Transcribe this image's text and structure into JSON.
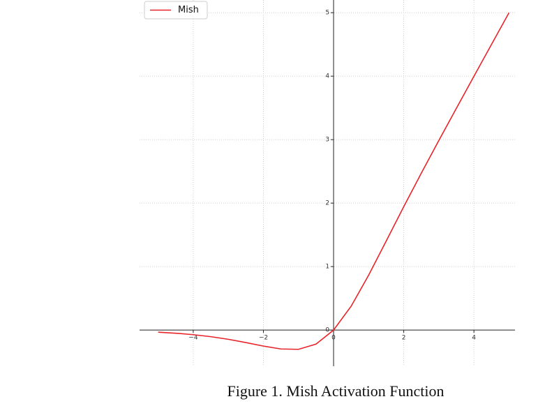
{
  "chart_data": {
    "type": "line",
    "caption": "Figure 1.  Mish Activation Function",
    "x": [
      -5,
      -4.5,
      -4,
      -3.5,
      -3,
      -2.5,
      -2,
      -1.5,
      -1,
      -0.5,
      0,
      0.5,
      1,
      1.5,
      2,
      2.5,
      3,
      3.5,
      4,
      4.5,
      5
    ],
    "series": [
      {
        "name": "Mish",
        "color": "#e8232a",
        "values": [
          -0.0336,
          -0.0497,
          -0.0726,
          -0.1041,
          -0.1456,
          -0.1968,
          -0.2525,
          -0.2981,
          -0.3034,
          -0.2207,
          0,
          0.3752,
          0.8651,
          1.4033,
          1.944,
          2.4714,
          2.9865,
          3.494,
          3.9974,
          4.4989,
          4.9996
        ]
      }
    ],
    "xlim": [
      -5.53,
      5.17
    ],
    "ylim": [
      -0.57,
      5.2
    ],
    "xticks": [
      {
        "value": -4,
        "label": "−4"
      },
      {
        "value": -2,
        "label": "−2"
      },
      0,
      2,
      4
    ],
    "yticks": [
      0,
      1,
      2,
      3,
      4,
      5
    ],
    "grid": true,
    "legend": "upper left"
  }
}
